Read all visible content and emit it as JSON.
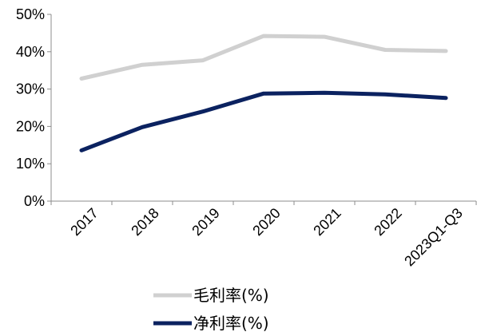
{
  "chart_data": {
    "type": "line",
    "categories": [
      "2017",
      "2018",
      "2019",
      "2020",
      "2021",
      "2022",
      "2023Q1-Q3"
    ],
    "ylim": [
      0,
      50
    ],
    "yticks": [
      0,
      10,
      20,
      30,
      40,
      50
    ],
    "ytick_labels": [
      "0%",
      "10%",
      "20%",
      "30%",
      "40%",
      "50%"
    ],
    "grid": false,
    "legend_position": "bottom",
    "series": [
      {
        "name": "毛利率(%)",
        "color": "#d0d0d0",
        "values": [
          32.8,
          36.5,
          37.7,
          44.2,
          44.0,
          40.5,
          40.2
        ]
      },
      {
        "name": "净利率(%)",
        "color": "#0b2260",
        "values": [
          13.6,
          19.8,
          24.0,
          28.8,
          29.0,
          28.6,
          27.6
        ]
      }
    ]
  }
}
